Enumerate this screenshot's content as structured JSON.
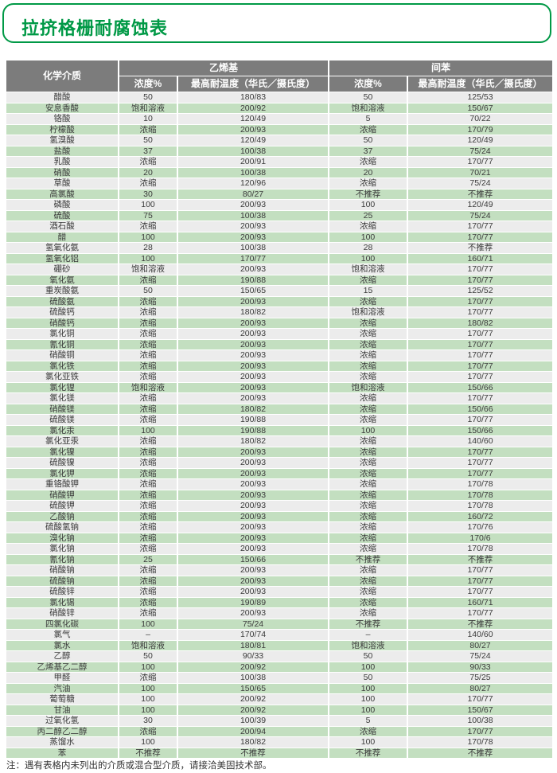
{
  "title": "拉挤格栅耐腐蚀表",
  "colors": {
    "accent_green": "#009946",
    "row_green": "#c3dfc0",
    "row_gray": "#ececec",
    "header_gray": "#7c7c7c"
  },
  "table": {
    "col_chemical": "化学介质",
    "group_vinyl": "乙烯基",
    "group_isophthalic": "间苯",
    "col_concentration": "浓度%",
    "col_max_temp": "最高耐温度（华氏／摄氏度）",
    "rows": [
      [
        "醋酸",
        "50",
        "180/83",
        "50",
        "125/53"
      ],
      [
        "安息香酸",
        "饱和溶液",
        "200/92",
        "饱和溶液",
        "150/67"
      ],
      [
        "铬酸",
        "10",
        "120/49",
        "5",
        "70/22"
      ],
      [
        "柠檬酸",
        "浓缩",
        "200/93",
        "浓缩",
        "170/79"
      ],
      [
        "氢溴酸",
        "50",
        "120/49",
        "50",
        "120/49"
      ],
      [
        "盐酸",
        "37",
        "100/38",
        "37",
        "75/24"
      ],
      [
        "乳酸",
        "浓缩",
        "200/91",
        "浓缩",
        "170/77"
      ],
      [
        "硝酸",
        "20",
        "100/38",
        "20",
        "70/21"
      ],
      [
        "草酸",
        "浓缩",
        "120/96",
        "浓缩",
        "75/24"
      ],
      [
        "高氯酸",
        "30",
        "80/27",
        "不推荐",
        "不推荐"
      ],
      [
        "磷酸",
        "100",
        "200/93",
        "100",
        "120/49"
      ],
      [
        "硫酸",
        "75",
        "100/38",
        "25",
        "75/24"
      ],
      [
        "酒石酸",
        "浓缩",
        "200/93",
        "浓缩",
        "170/77"
      ],
      [
        "醋",
        "100",
        "200/93",
        "100",
        "170/77"
      ],
      [
        "氢氧化氨",
        "28",
        "100/38",
        "28",
        "不推荐"
      ],
      [
        "氢氧化铝",
        "100",
        "170/77",
        "100",
        "160/71"
      ],
      [
        "硼砂",
        "饱和溶液",
        "200/93",
        "饱和溶液",
        "170/77"
      ],
      [
        "氧化氨",
        "浓缩",
        "190/88",
        "浓缩",
        "170/77"
      ],
      [
        "重炭酸氨",
        "50",
        "150/65",
        "15",
        "125/52"
      ],
      [
        "硫酸氨",
        "浓缩",
        "200/93",
        "浓缩",
        "170/77"
      ],
      [
        "硫酸钙",
        "浓缩",
        "180/82",
        "饱和溶液",
        "170/77"
      ],
      [
        "硝酸钙",
        "浓缩",
        "200/93",
        "浓缩",
        "180/82"
      ],
      [
        "氯化铜",
        "浓缩",
        "200/93",
        "浓缩",
        "170/77"
      ],
      [
        "氰化铜",
        "浓缩",
        "200/93",
        "浓缩",
        "170/77"
      ],
      [
        "硝酸铜",
        "浓缩",
        "200/93",
        "浓缩",
        "170/77"
      ],
      [
        "氯化铁",
        "浓缩",
        "200/93",
        "浓缩",
        "170/77"
      ],
      [
        "氯化亚铁",
        "浓缩",
        "200/93",
        "浓缩",
        "170/77"
      ],
      [
        "氯化锂",
        "饱和溶液",
        "200/93",
        "饱和溶液",
        "150/66"
      ],
      [
        "氯化镁",
        "浓缩",
        "200/93",
        "浓缩",
        "170/77"
      ],
      [
        "硝酸镁",
        "浓缩",
        "180/82",
        "浓缩",
        "150/66"
      ],
      [
        "硫酸镁",
        "浓缩",
        "190/88",
        "浓缩",
        "170/77"
      ],
      [
        "氯化汞",
        "100",
        "190/88",
        "100",
        "150/66"
      ],
      [
        "氯化亚汞",
        "浓缩",
        "180/82",
        "浓缩",
        "140/60"
      ],
      [
        "氯化镍",
        "浓缩",
        "200/93",
        "浓缩",
        "170/77"
      ],
      [
        "硫酸镍",
        "浓缩",
        "200/93",
        "浓缩",
        "170/77"
      ],
      [
        "氯化钾",
        "浓缩",
        "200/93",
        "浓缩",
        "170/77"
      ],
      [
        "重铬酸钾",
        "浓缩",
        "200/93",
        "浓缩",
        "170/78"
      ],
      [
        "硝酸钾",
        "浓缩",
        "200/93",
        "浓缩",
        "170/78"
      ],
      [
        "硫酸钾",
        "浓缩",
        "200/93",
        "浓缩",
        "170/78"
      ],
      [
        "乙酸钠",
        "浓缩",
        "200/93",
        "浓缩",
        "160/72"
      ],
      [
        "硫酸氢钠",
        "浓缩",
        "200/93",
        "浓缩",
        "170/76"
      ],
      [
        "溴化钠",
        "浓缩",
        "200/93",
        "浓缩",
        "170/6"
      ],
      [
        "氯化钠",
        "浓缩",
        "200/93",
        "浓缩",
        "170/78"
      ],
      [
        "氰化钠",
        "25",
        "150/66",
        "不推荐",
        "不推荐"
      ],
      [
        "硝酸钠",
        "浓缩",
        "200/93",
        "浓缩",
        "170/77"
      ],
      [
        "硫酸钠",
        "浓缩",
        "200/93",
        "浓缩",
        "170/77"
      ],
      [
        "硫酸锌",
        "浓缩",
        "200/93",
        "浓缩",
        "170/77"
      ],
      [
        "氯化锡",
        "浓缩",
        "190/89",
        "浓缩",
        "160/71"
      ],
      [
        "硝酸锌",
        "浓缩",
        "200/93",
        "浓缩",
        "170/77"
      ],
      [
        "四氯化碳",
        "100",
        "75/24",
        "不推荐",
        "不推荐"
      ],
      [
        "氯气",
        "–",
        "170/74",
        "–",
        "140/60"
      ],
      [
        "氯水",
        "饱和溶液",
        "180/81",
        "饱和溶液",
        "80/27"
      ],
      [
        "乙醇",
        "50",
        "90/33",
        "50",
        "75/24"
      ],
      [
        "乙烯基乙二醇",
        "100",
        "200/92",
        "100",
        "90/33"
      ],
      [
        "甲醛",
        "浓缩",
        "100/38",
        "50",
        "75/25"
      ],
      [
        "汽油",
        "100",
        "150/65",
        "100",
        "80/27"
      ],
      [
        "葡萄糖",
        "100",
        "200/92",
        "100",
        "170/77"
      ],
      [
        "甘油",
        "100",
        "200/92",
        "100",
        "150/67"
      ],
      [
        "过氧化氢",
        "30",
        "100/39",
        "5",
        "100/38"
      ],
      [
        "丙二醇乙二醇",
        "浓缩",
        "200/94",
        "浓缩",
        "170/77"
      ],
      [
        "蒸馏水",
        "100",
        "180/82",
        "100",
        "170/78"
      ],
      [
        "苯",
        "不推荐",
        "不推荐",
        "不推荐",
        "不推荐"
      ]
    ]
  },
  "note": "注：遇有表格内未列出的介质或混合型介质，请接洽美固技术部。"
}
